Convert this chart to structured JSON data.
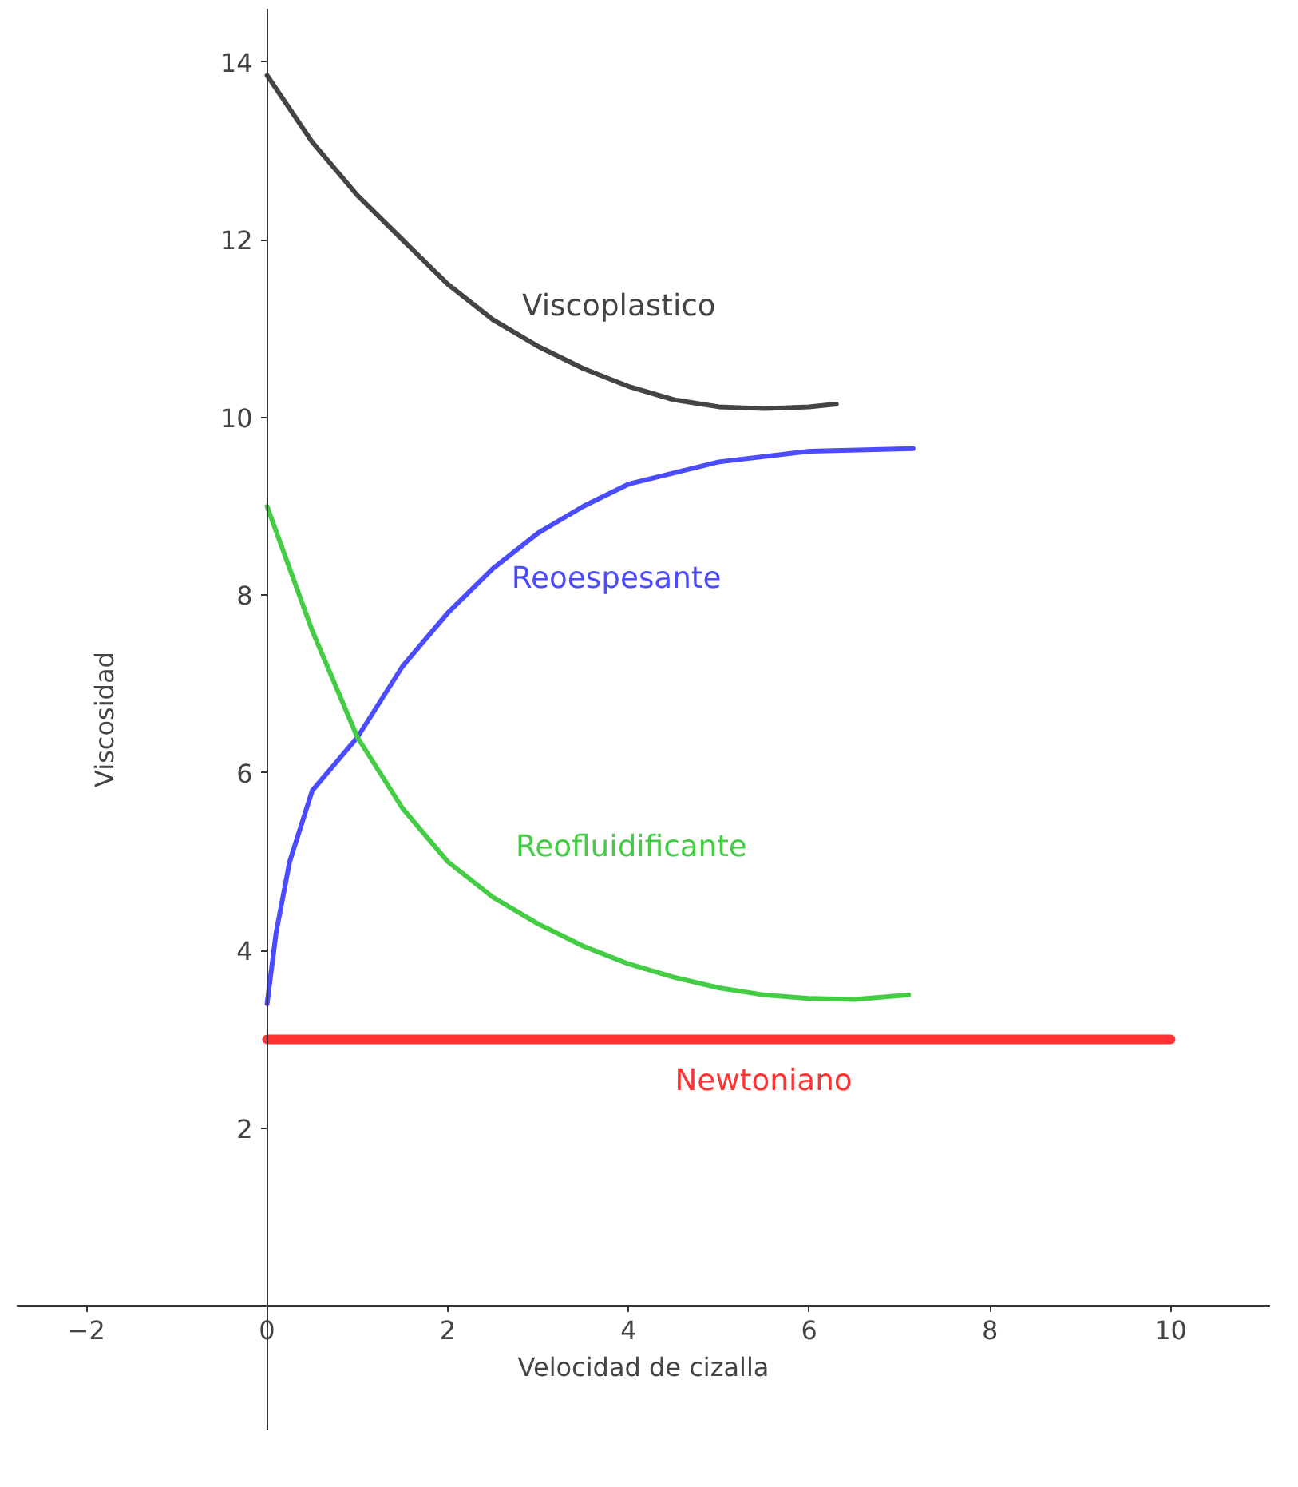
{
  "chart_data": {
    "type": "line",
    "xlabel": "Velocidad de cizalla",
    "ylabel": "Viscosidad",
    "xlim": [
      -2.77,
      11.1
    ],
    "ylim": [
      -1.4,
      14.6
    ],
    "xticks": [
      {
        "value": -2,
        "label": "−2"
      },
      0,
      2,
      4,
      6,
      8,
      10
    ],
    "yticks": [
      2,
      4,
      6,
      8,
      10,
      12,
      14
    ],
    "grid": false,
    "legend": false,
    "marker": "none",
    "line_style": "solid",
    "series": [
      {
        "name": "Viscoplastico",
        "color": "#444444",
        "x": [
          0,
          0.5,
          1,
          1.5,
          2,
          2.5,
          3,
          3.5,
          4,
          4.5,
          5,
          5.5,
          6,
          6.3
        ],
        "values": [
          13.85,
          13.1,
          12.5,
          12.0,
          11.5,
          11.1,
          10.8,
          10.55,
          10.35,
          10.2,
          10.12,
          10.1,
          10.12,
          10.15
        ]
      },
      {
        "name": "Reoespesante",
        "color": "#4b4bff",
        "x": [
          0,
          0.1,
          0.25,
          0.5,
          0.75,
          1,
          1.5,
          2,
          2.5,
          3,
          3.5,
          4,
          5,
          6,
          7.15
        ],
        "values": [
          3.4,
          4.2,
          5.0,
          5.8,
          6.1,
          6.4,
          7.2,
          7.8,
          8.3,
          8.7,
          9.0,
          9.25,
          9.5,
          9.62,
          9.65
        ]
      },
      {
        "name": "Reofluidificante",
        "color": "#44cc44",
        "x": [
          0,
          0.5,
          1,
          1.5,
          2,
          2.5,
          3,
          3.5,
          4,
          4.5,
          5,
          5.5,
          6,
          6.5,
          7.1
        ],
        "values": [
          9.0,
          7.6,
          6.4,
          5.6,
          5.0,
          4.6,
          4.3,
          4.05,
          3.85,
          3.7,
          3.58,
          3.5,
          3.46,
          3.45,
          3.5
        ]
      },
      {
        "name": "Newtoniano",
        "color": "#ff3333",
        "x": [
          0,
          10
        ],
        "values": [
          3,
          3
        ]
      }
    ]
  }
}
